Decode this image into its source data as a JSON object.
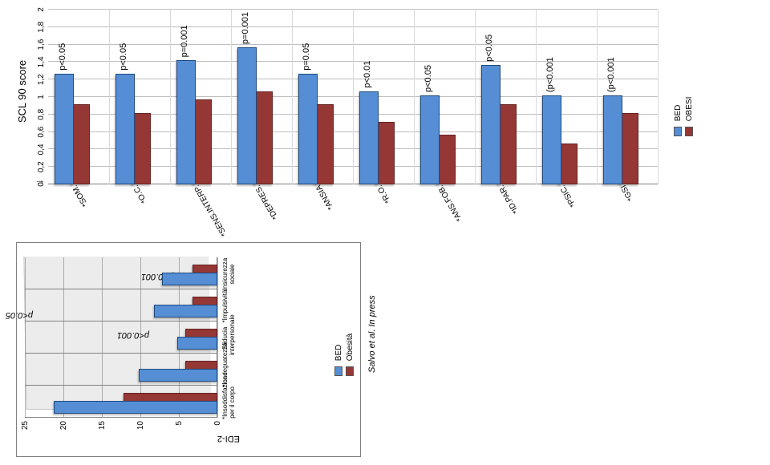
{
  "left_panel": {
    "ylabel": "EDI-2",
    "citation": "Salvo et al. In press",
    "ylim": [
      0,
      25
    ],
    "ytick_step": 5,
    "categories": [
      "*Insoddisfazione per il corpo",
      "*Inadeguatezza",
      "Sfiducia interpersonale",
      "*Impulsività",
      "Insicurezza sociale"
    ],
    "series": [
      {
        "name": "BED",
        "color": "#558ed5",
        "border": "#1f497d",
        "values": [
          21,
          10,
          5,
          8,
          7
        ]
      },
      {
        "name": "Obesità",
        "color": "#953735",
        "border": "#632423",
        "values": [
          12,
          4,
          4,
          3,
          3
        ]
      }
    ],
    "annotations": [
      {
        "text": "p<0.05",
        "style": "annot"
      },
      {
        "text": "p<0.001",
        "style": "annot"
      },
      {
        "text": "p<0.001",
        "style": "annot"
      }
    ],
    "legend": [
      "BED",
      "Obesità"
    ]
  },
  "right_panel": {
    "title": "SCL 90 score",
    "ylim": [
      0,
      2
    ],
    "ytick_step": 0.2,
    "categories": [
      "*SOM.",
      "*O.C.",
      "*SENS.INTERP.",
      "*DEPRES.",
      "*ANSIA",
      "*R.O.",
      "*ANS.FOB.",
      "*ID.PAR.",
      "*PSIC.",
      "*GSI"
    ],
    "series": [
      {
        "name": "BED",
        "color": "#558ed5",
        "border": "#1f497d",
        "values": [
          1.25,
          1.25,
          1.4,
          1.55,
          1.25,
          1.05,
          1.0,
          1.35,
          1.0,
          1.0
        ]
      },
      {
        "name": "OBESI",
        "color": "#953735",
        "border": "#632423",
        "values": [
          0.9,
          0.8,
          0.95,
          1.05,
          0.9,
          0.7,
          0.55,
          0.9,
          0.45,
          0.8
        ]
      }
    ],
    "value_labels": [
      "p<0.05",
      "p<0.05",
      "p=0.001",
      "p=0.001",
      "p=0.05",
      "p<0.01",
      "p<0.05",
      "p<0.05",
      "(p<0.001",
      "(p<0.001"
    ],
    "legend": [
      "BED",
      "OBESI"
    ]
  },
  "colors": {
    "grid": "#808080",
    "text": "#000000"
  }
}
